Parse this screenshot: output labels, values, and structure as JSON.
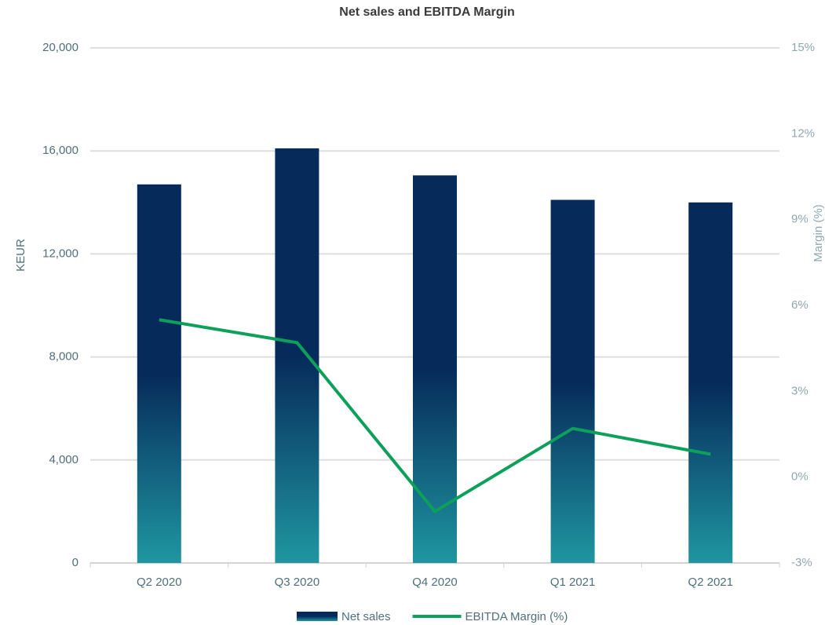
{
  "chart_data": {
    "type": "bar_line",
    "title": "Net sales and EBITDA Margin",
    "categories": [
      "Q2 2020",
      "Q3 2020",
      "Q4 2020",
      "Q1 2021",
      "Q2 2021"
    ],
    "series": [
      {
        "name": "Net sales",
        "color": "#062a5a",
        "values": [
          14700,
          16100,
          15050,
          14100,
          14000
        ]
      },
      {
        "name": "EBITDA Margin (%)",
        "color": "#0ca05a",
        "axis": "y2",
        "values": [
          5.5,
          4.7,
          -1.2,
          1.7,
          0.8
        ]
      }
    ],
    "ylabel": "KEUR",
    "y2label": "Margin (%)",
    "ylim": [
      0,
      20000
    ],
    "yticks": [
      0,
      {
        "value": 4000,
        "label": "4,000"
      },
      {
        "value": 8000,
        "label": "8,000"
      },
      {
        "value": 12000,
        "label": "12,000"
      },
      {
        "value": 16000,
        "label": "16,000"
      },
      {
        "value": 20000,
        "label": "20,000"
      }
    ],
    "y2lim": [
      -3,
      15
    ],
    "y2ticks": [
      {
        "value": -3,
        "label": "-3%"
      },
      {
        "value": 0,
        "label": "0%"
      },
      {
        "value": 3,
        "label": "3%"
      },
      {
        "value": 6,
        "label": "6%"
      },
      {
        "value": 9,
        "label": "9%"
      },
      {
        "value": 12,
        "label": "12%"
      },
      {
        "value": 15,
        "label": "15%"
      }
    ],
    "grid": true,
    "legend": "bottom"
  }
}
